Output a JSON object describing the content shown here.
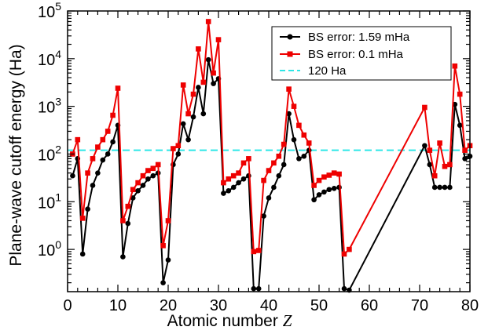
{
  "chart_data": {
    "type": "line",
    "xlabel": "Atomic number",
    "xlabel_symbol": "Z",
    "ylabel": "Plane-wave cutoff energy (Ha)",
    "y_scale": "log",
    "xlim": [
      0,
      80
    ],
    "ylim": [
      0.13,
      100000
    ],
    "x_ticks": [
      "0",
      "10",
      "20",
      "30",
      "40",
      "50",
      "60",
      "70",
      "80"
    ],
    "y_tick_bases": [
      "10",
      "10",
      "10",
      "10",
      "10",
      "10"
    ],
    "y_tick_exponents": [
      "0",
      "1",
      "2",
      "3",
      "4",
      "5"
    ],
    "y_tick_values": [
      1,
      10,
      100,
      1000,
      10000,
      100000
    ],
    "legend_position": "top-right",
    "series": [
      {
        "name": "BS error: 1.59 mHa",
        "color": "#000000",
        "marker": "circle",
        "x": [
          1,
          2,
          3,
          4,
          5,
          6,
          7,
          8,
          9,
          10,
          11,
          12,
          13,
          14,
          15,
          16,
          17,
          18,
          19,
          20,
          21,
          22,
          23,
          24,
          25,
          26,
          27,
          28,
          29,
          30,
          31,
          32,
          33,
          34,
          35,
          36,
          37,
          38,
          39,
          40,
          41,
          42,
          43,
          44,
          45,
          46,
          47,
          48,
          49,
          50,
          51,
          52,
          53,
          54,
          55,
          56,
          71,
          72,
          73,
          74,
          75,
          76,
          77,
          78,
          79,
          80
        ],
        "y": [
          35,
          80,
          0.8,
          7,
          22,
          40,
          75,
          100,
          180,
          400,
          0.7,
          3.5,
          12,
          17,
          22,
          30,
          35,
          40,
          0.2,
          0.6,
          60,
          100,
          430,
          200,
          600,
          2500,
          700,
          9500,
          3000,
          3800,
          15,
          17,
          20,
          25,
          30,
          35,
          0.15,
          0.15,
          5,
          12,
          20,
          35,
          60,
          700,
          200,
          80,
          90,
          120,
          11,
          14,
          16,
          18,
          19,
          20,
          0.15,
          0.14,
          150,
          60,
          20,
          20,
          20,
          20,
          1100,
          400,
          80,
          90
        ]
      },
      {
        "name": "BS error: 0.1 mHa",
        "color": "#ee0000",
        "marker": "square",
        "x": [
          1,
          2,
          3,
          4,
          5,
          6,
          7,
          8,
          9,
          10,
          11,
          12,
          13,
          14,
          15,
          16,
          17,
          18,
          19,
          20,
          21,
          22,
          23,
          24,
          25,
          26,
          27,
          28,
          29,
          30,
          31,
          32,
          33,
          34,
          35,
          36,
          37,
          38,
          39,
          40,
          41,
          42,
          43,
          44,
          45,
          46,
          47,
          48,
          49,
          50,
          51,
          52,
          53,
          54,
          55,
          56,
          71,
          72,
          73,
          74,
          75,
          76,
          77,
          78,
          79,
          80
        ],
        "y": [
          100,
          200,
          4.5,
          40,
          80,
          140,
          200,
          300,
          650,
          2400,
          4,
          8,
          18,
          25,
          35,
          45,
          50,
          60,
          1.2,
          4,
          130,
          150,
          2800,
          700,
          1800,
          16000,
          3200,
          60000,
          5000,
          25000,
          25,
          30,
          35,
          40,
          65,
          80,
          0.9,
          0.95,
          28,
          45,
          65,
          90,
          160,
          2300,
          1000,
          400,
          250,
          170,
          22,
          28,
          33,
          36,
          40,
          38,
          0.8,
          1,
          950,
          120,
          35,
          170,
          55,
          60,
          7000,
          1800,
          120,
          150
        ]
      },
      {
        "name": "120 Ha",
        "color": "#2ee6e6",
        "style": "dashed",
        "y_constant": 120
      }
    ]
  }
}
